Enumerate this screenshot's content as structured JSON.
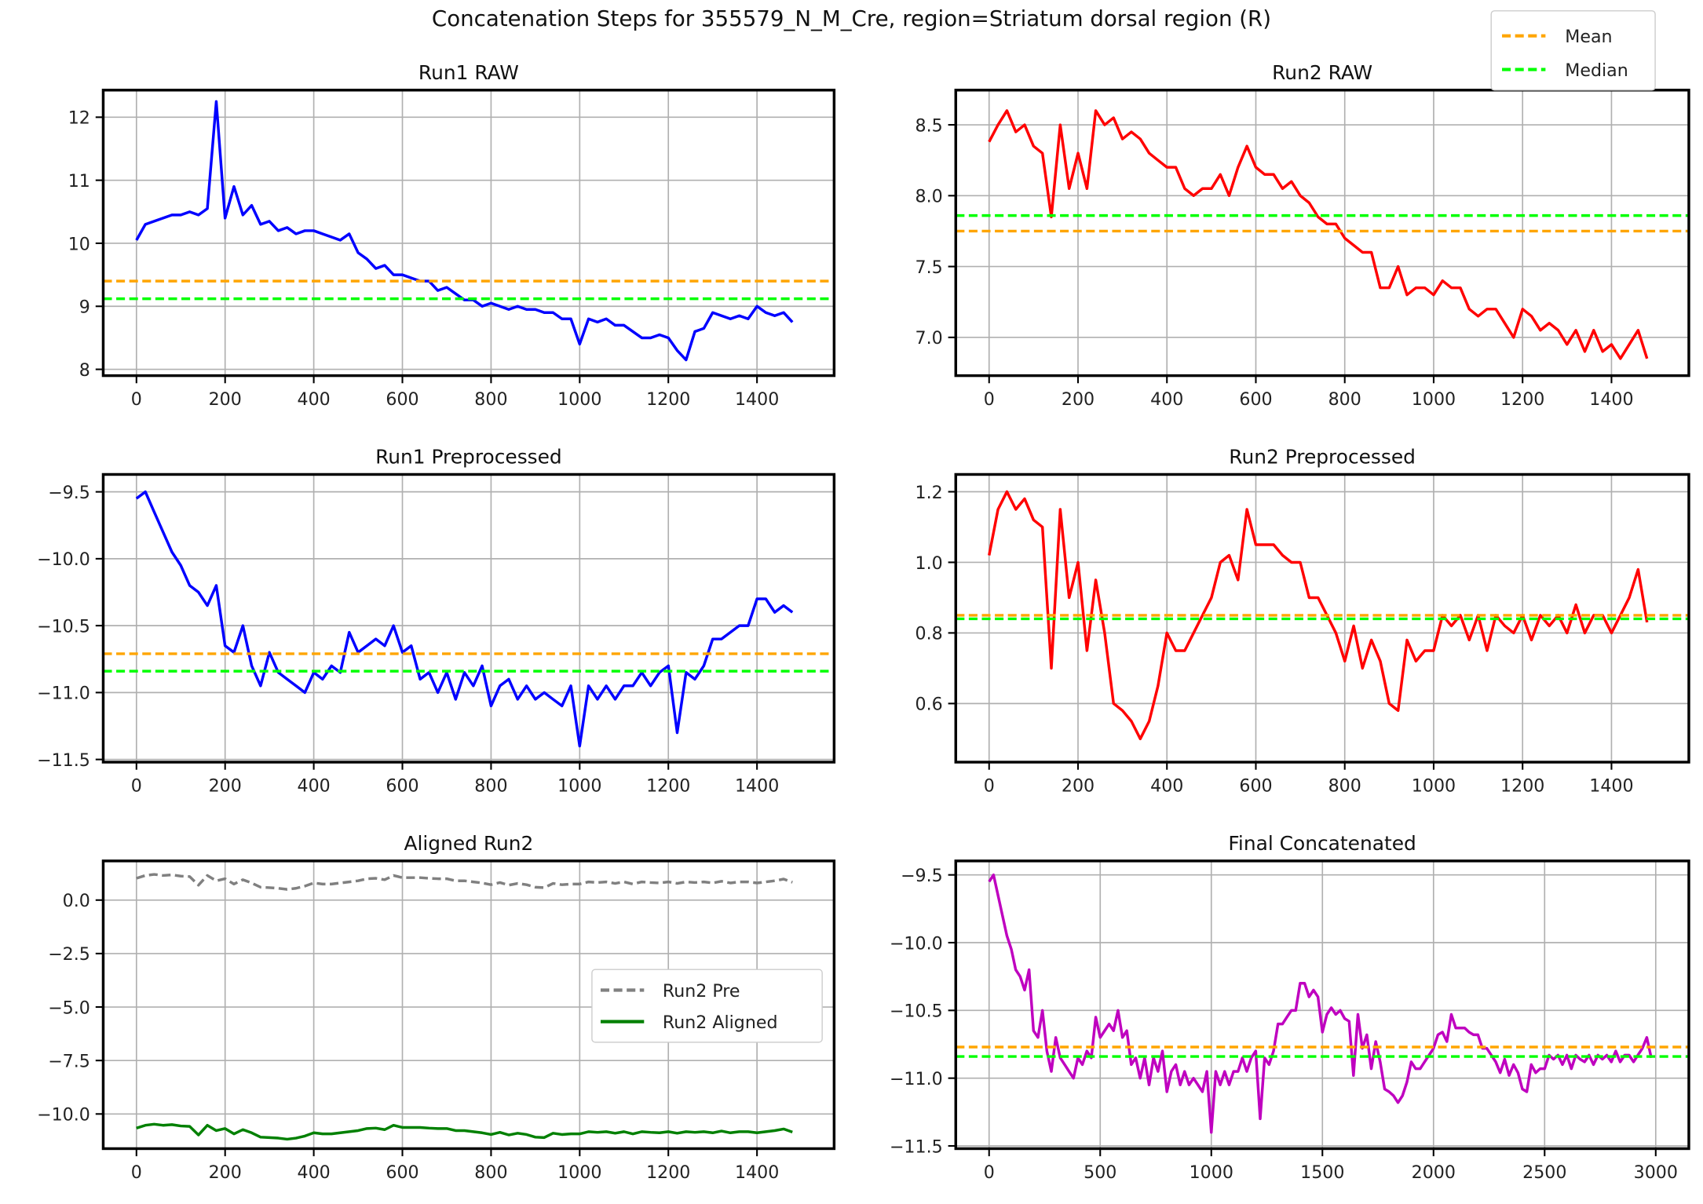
{
  "figure_title": "Concatenation Steps for 355579_N_M_Cre, region=Striatum dorsal region (R)",
  "figure_legend": [
    {
      "label": "Mean",
      "color": "#ffa500",
      "style": "dashed"
    },
    {
      "label": "Median",
      "color": "#00ff00",
      "style": "dashed"
    }
  ],
  "chart_data": [
    {
      "type": "line",
      "title": "Run1 RAW",
      "grid": true,
      "xlim": [
        -75,
        1574
      ],
      "ylim": [
        7.9,
        12.43
      ],
      "xticks": [
        0,
        200,
        400,
        600,
        800,
        1000,
        1200,
        1400
      ],
      "xtick_labels": [
        "0",
        "200",
        "400",
        "600",
        "800",
        "1000",
        "1200",
        "1400"
      ],
      "yticks": [
        8,
        9,
        10,
        11,
        12
      ],
      "ytick_labels": [
        "8",
        "9",
        "10",
        "11",
        "12"
      ],
      "series": [
        {
          "color": "#0000ff",
          "values": [
            10.05,
            10.3,
            10.35,
            10.4,
            10.45,
            10.45,
            10.5,
            10.45,
            10.55,
            12.25,
            10.4,
            10.9,
            10.45,
            10.6,
            10.3,
            10.35,
            10.2,
            10.25,
            10.15,
            10.2,
            10.2,
            10.15,
            10.1,
            10.05,
            10.15,
            9.85,
            9.75,
            9.6,
            9.65,
            9.5,
            9.5,
            9.45,
            9.4,
            9.4,
            9.25,
            9.3,
            9.2,
            9.1,
            9.1,
            9.0,
            9.05,
            9.0,
            8.95,
            9.0,
            8.95,
            8.95,
            8.9,
            8.9,
            8.8,
            8.8,
            8.4,
            8.8,
            8.75,
            8.8,
            8.7,
            8.7,
            8.6,
            8.5,
            8.5,
            8.55,
            8.5,
            8.3,
            8.15,
            8.6,
            8.65,
            8.9,
            8.85,
            8.8,
            8.85,
            8.8,
            9.0,
            8.9,
            8.85,
            8.9,
            8.75
          ]
        }
      ],
      "mean": 9.4,
      "median": 9.12
    },
    {
      "type": "line",
      "title": "Run2 RAW",
      "grid": true,
      "xlim": [
        -75,
        1574
      ],
      "ylim": [
        6.73,
        8.745
      ],
      "xticks": [
        0,
        200,
        400,
        600,
        800,
        1000,
        1200,
        1400
      ],
      "xtick_labels": [
        "0",
        "200",
        "400",
        "600",
        "800",
        "1000",
        "1200",
        "1400"
      ],
      "yticks": [
        7.0,
        7.5,
        8.0,
        8.5
      ],
      "ytick_labels": [
        "7.0",
        "7.5",
        "8.0",
        "8.5"
      ],
      "series": [
        {
          "color": "#ff0000",
          "values": [
            8.38,
            8.5,
            8.6,
            8.45,
            8.5,
            8.35,
            8.3,
            7.85,
            8.5,
            8.05,
            8.3,
            8.05,
            8.6,
            8.5,
            8.55,
            8.4,
            8.45,
            8.4,
            8.3,
            8.25,
            8.2,
            8.2,
            8.05,
            8.0,
            8.05,
            8.05,
            8.15,
            8.0,
            8.2,
            8.35,
            8.2,
            8.15,
            8.15,
            8.05,
            8.1,
            8.0,
            7.95,
            7.85,
            7.8,
            7.8,
            7.7,
            7.65,
            7.6,
            7.6,
            7.35,
            7.35,
            7.5,
            7.3,
            7.35,
            7.35,
            7.3,
            7.4,
            7.35,
            7.35,
            7.2,
            7.15,
            7.2,
            7.2,
            7.1,
            7.0,
            7.2,
            7.15,
            7.05,
            7.1,
            7.05,
            6.95,
            7.05,
            6.9,
            7.05,
            6.9,
            6.95,
            6.85,
            6.95,
            7.05,
            6.85
          ]
        }
      ],
      "mean": 7.75,
      "median": 7.86
    },
    {
      "type": "line",
      "title": "Run1 Preprocessed",
      "grid": true,
      "xlim": [
        -75,
        1574
      ],
      "ylim": [
        -11.52,
        -9.37
      ],
      "xticks": [
        0,
        200,
        400,
        600,
        800,
        1000,
        1200,
        1400
      ],
      "xtick_labels": [
        "0",
        "200",
        "400",
        "600",
        "800",
        "1000",
        "1200",
        "1400"
      ],
      "yticks": [
        -11.5,
        -11.0,
        -10.5,
        -10.0,
        -9.5
      ],
      "ytick_labels": [
        "−11.5",
        "−11.0",
        "−10.5",
        "−10.0",
        "−9.5"
      ],
      "series": [
        {
          "color": "#0000ff",
          "values": [
            -9.55,
            -9.5,
            -9.65,
            -9.8,
            -9.95,
            -10.05,
            -10.2,
            -10.25,
            -10.35,
            -10.2,
            -10.65,
            -10.7,
            -10.5,
            -10.8,
            -10.95,
            -10.7,
            -10.85,
            -10.9,
            -10.95,
            -11.0,
            -10.85,
            -10.9,
            -10.8,
            -10.85,
            -10.55,
            -10.7,
            -10.65,
            -10.6,
            -10.65,
            -10.5,
            -10.7,
            -10.65,
            -10.9,
            -10.85,
            -11.0,
            -10.85,
            -11.05,
            -10.85,
            -10.95,
            -10.8,
            -11.1,
            -10.95,
            -10.9,
            -11.05,
            -10.95,
            -11.05,
            -11.0,
            -11.05,
            -11.1,
            -10.95,
            -11.4,
            -10.95,
            -11.05,
            -10.95,
            -11.05,
            -10.95,
            -10.95,
            -10.85,
            -10.95,
            -10.85,
            -10.8,
            -11.3,
            -10.85,
            -10.9,
            -10.8,
            -10.6,
            -10.6,
            -10.55,
            -10.5,
            -10.5,
            -10.3,
            -10.3,
            -10.4,
            -10.35,
            -10.4
          ]
        }
      ],
      "mean": -10.71,
      "median": -10.84
    },
    {
      "type": "line",
      "title": "Run2 Preprocessed",
      "grid": true,
      "xlim": [
        -75,
        1574
      ],
      "ylim": [
        0.434,
        1.249
      ],
      "xticks": [
        0,
        200,
        400,
        600,
        800,
        1000,
        1200,
        1400
      ],
      "xtick_labels": [
        "0",
        "200",
        "400",
        "600",
        "800",
        "1000",
        "1200",
        "1400"
      ],
      "yticks": [
        0.6,
        0.8,
        1.0,
        1.2
      ],
      "ytick_labels": [
        "0.6",
        "0.8",
        "1.0",
        "1.2"
      ],
      "series": [
        {
          "color": "#ff0000",
          "values": [
            1.02,
            1.15,
            1.2,
            1.15,
            1.18,
            1.12,
            1.1,
            0.7,
            1.15,
            0.9,
            1.0,
            0.75,
            0.95,
            0.8,
            0.6,
            0.58,
            0.55,
            0.5,
            0.55,
            0.65,
            0.8,
            0.75,
            0.75,
            0.8,
            0.85,
            0.9,
            1.0,
            1.02,
            0.95,
            1.15,
            1.05,
            1.05,
            1.05,
            1.02,
            1.0,
            1.0,
            0.9,
            0.9,
            0.85,
            0.8,
            0.72,
            0.82,
            0.7,
            0.78,
            0.72,
            0.6,
            0.58,
            0.78,
            0.72,
            0.75,
            0.75,
            0.85,
            0.82,
            0.85,
            0.78,
            0.85,
            0.75,
            0.85,
            0.82,
            0.8,
            0.85,
            0.78,
            0.85,
            0.82,
            0.85,
            0.8,
            0.88,
            0.8,
            0.85,
            0.85,
            0.8,
            0.85,
            0.9,
            0.98,
            0.83
          ]
        }
      ],
      "mean": 0.85,
      "median": 0.84
    },
    {
      "type": "line",
      "title": "Aligned Run2",
      "grid": true,
      "xlim": [
        -75,
        1574
      ],
      "ylim": [
        -11.62,
        1.83
      ],
      "xticks": [
        0,
        200,
        400,
        600,
        800,
        1000,
        1200,
        1400
      ],
      "xtick_labels": [
        "0",
        "200",
        "400",
        "600",
        "800",
        "1000",
        "1200",
        "1400"
      ],
      "yticks": [
        -10.0,
        -7.5,
        -5.0,
        -2.5,
        0.0
      ],
      "ytick_labels": [
        "−10.0",
        "−7.5",
        "−5.0",
        "−2.5",
        "0.0"
      ],
      "legend_position": "center-right",
      "series": [
        {
          "name": "Run2 Pre",
          "color": "#808080",
          "style": "dashed",
          "values": [
            1.02,
            1.15,
            1.2,
            1.15,
            1.18,
            1.12,
            1.1,
            0.7,
            1.15,
            0.9,
            1.0,
            0.75,
            0.95,
            0.8,
            0.6,
            0.58,
            0.55,
            0.5,
            0.55,
            0.65,
            0.8,
            0.75,
            0.75,
            0.8,
            0.85,
            0.9,
            1.0,
            1.02,
            0.95,
            1.15,
            1.05,
            1.05,
            1.05,
            1.02,
            1.0,
            1.0,
            0.9,
            0.9,
            0.85,
            0.8,
            0.72,
            0.82,
            0.7,
            0.78,
            0.72,
            0.6,
            0.58,
            0.78,
            0.72,
            0.75,
            0.75,
            0.85,
            0.82,
            0.85,
            0.78,
            0.85,
            0.75,
            0.85,
            0.82,
            0.8,
            0.85,
            0.78,
            0.85,
            0.82,
            0.85,
            0.8,
            0.88,
            0.8,
            0.85,
            0.85,
            0.8,
            0.85,
            0.9,
            0.98,
            0.83
          ]
        },
        {
          "name": "Run2 Aligned",
          "color": "#008000",
          "style": "solid",
          "values": [
            -10.66,
            -10.53,
            -10.48,
            -10.53,
            -10.5,
            -10.56,
            -10.58,
            -10.98,
            -10.53,
            -10.78,
            -10.68,
            -10.93,
            -10.73,
            -10.88,
            -11.08,
            -11.1,
            -11.13,
            -11.18,
            -11.13,
            -11.03,
            -10.88,
            -10.93,
            -10.93,
            -10.88,
            -10.83,
            -10.78,
            -10.68,
            -10.66,
            -10.73,
            -10.53,
            -10.63,
            -10.63,
            -10.63,
            -10.66,
            -10.68,
            -10.68,
            -10.78,
            -10.78,
            -10.83,
            -10.88,
            -10.96,
            -10.86,
            -10.98,
            -10.9,
            -10.96,
            -11.08,
            -11.1,
            -10.9,
            -10.96,
            -10.93,
            -10.93,
            -10.83,
            -10.86,
            -10.83,
            -10.9,
            -10.83,
            -10.93,
            -10.83,
            -10.86,
            -10.88,
            -10.83,
            -10.9,
            -10.83,
            -10.86,
            -10.83,
            -10.88,
            -10.8,
            -10.88,
            -10.83,
            -10.83,
            -10.88,
            -10.83,
            -10.78,
            -10.7,
            -10.85
          ]
        }
      ]
    },
    {
      "type": "line",
      "title": "Final Concatenated",
      "grid": true,
      "xlim": [
        -150,
        3149
      ],
      "ylim": [
        -11.52,
        -9.397
      ],
      "xticks": [
        0,
        500,
        1000,
        1500,
        2000,
        2500,
        3000
      ],
      "xtick_labels": [
        "0",
        "500",
        "1000",
        "1500",
        "2000",
        "2500",
        "3000"
      ],
      "yticks": [
        -11.5,
        -11.0,
        -10.5,
        -10.0,
        -9.5
      ],
      "ytick_labels": [
        "−11.5",
        "−11.0",
        "−10.5",
        "−10.0",
        "−9.5"
      ],
      "series": [
        {
          "color": "#bf00bf",
          "values": [
            -9.55,
            -9.5,
            -9.65,
            -9.8,
            -9.95,
            -10.05,
            -10.2,
            -10.25,
            -10.35,
            -10.2,
            -10.65,
            -10.7,
            -10.5,
            -10.8,
            -10.95,
            -10.7,
            -10.85,
            -10.9,
            -10.95,
            -11.0,
            -10.85,
            -10.9,
            -10.8,
            -10.85,
            -10.55,
            -10.7,
            -10.65,
            -10.6,
            -10.65,
            -10.5,
            -10.7,
            -10.65,
            -10.9,
            -10.85,
            -11.0,
            -10.85,
            -11.05,
            -10.85,
            -10.95,
            -10.8,
            -11.1,
            -10.95,
            -10.9,
            -11.05,
            -10.95,
            -11.05,
            -11.0,
            -11.05,
            -11.1,
            -10.95,
            -11.4,
            -10.95,
            -11.05,
            -10.95,
            -11.05,
            -10.95,
            -10.95,
            -10.85,
            -10.95,
            -10.85,
            -10.8,
            -11.3,
            -10.85,
            -10.9,
            -10.8,
            -10.6,
            -10.6,
            -10.55,
            -10.5,
            -10.5,
            -10.3,
            -10.3,
            -10.4,
            -10.35,
            -10.4,
            -10.66,
            -10.53,
            -10.48,
            -10.53,
            -10.5,
            -10.56,
            -10.58,
            -10.98,
            -10.53,
            -10.78,
            -10.68,
            -10.93,
            -10.73,
            -10.88,
            -11.08,
            -11.1,
            -11.13,
            -11.18,
            -11.13,
            -11.03,
            -10.88,
            -10.93,
            -10.93,
            -10.88,
            -10.83,
            -10.78,
            -10.68,
            -10.66,
            -10.73,
            -10.53,
            -10.63,
            -10.63,
            -10.63,
            -10.66,
            -10.68,
            -10.68,
            -10.78,
            -10.78,
            -10.83,
            -10.88,
            -10.96,
            -10.86,
            -10.98,
            -10.9,
            -10.96,
            -11.08,
            -11.1,
            -10.9,
            -10.96,
            -10.93,
            -10.93,
            -10.83,
            -10.86,
            -10.83,
            -10.9,
            -10.83,
            -10.93,
            -10.83,
            -10.86,
            -10.88,
            -10.83,
            -10.9,
            -10.83,
            -10.86,
            -10.83,
            -10.88,
            -10.8,
            -10.88,
            -10.83,
            -10.83,
            -10.88,
            -10.83,
            -10.78,
            -10.7,
            -10.85
          ]
        }
      ],
      "mean": -10.77,
      "median": -10.84
    }
  ]
}
